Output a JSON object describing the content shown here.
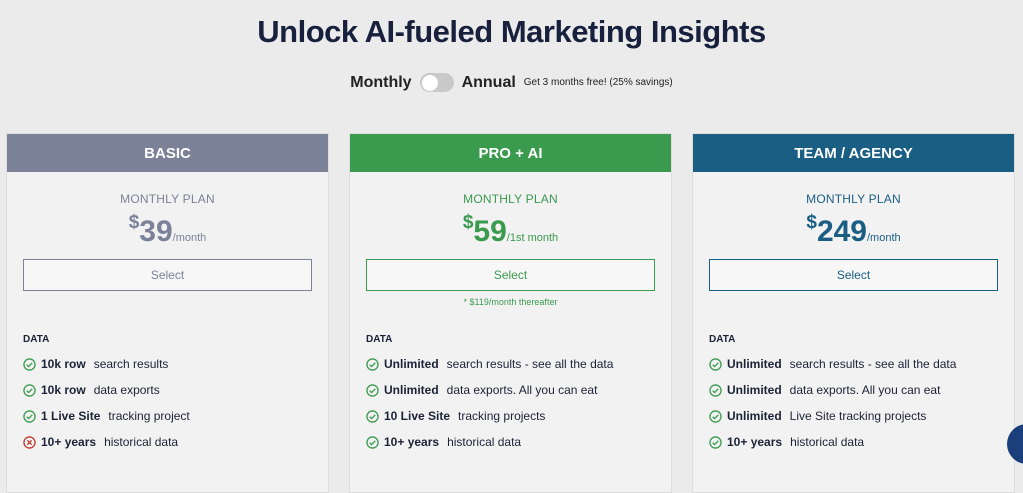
{
  "title": "Unlock AI-fueled Marketing Insights",
  "billing_toggle": {
    "monthly_label": "Monthly",
    "annual_label": "Annual",
    "annual_offer": "Get 3 months free! (25% savings)",
    "selected": "monthly"
  },
  "plans": [
    {
      "name": "BASIC",
      "color": "#7b8298",
      "plan_label": "MONTHLY PLAN",
      "currency": "$",
      "price": "39",
      "period": "/month",
      "button": "Select",
      "section": "DATA",
      "features": [
        {
          "bold": "10k row",
          "text": "search results",
          "included": true
        },
        {
          "bold": "10k row",
          "text": "data exports",
          "included": true
        },
        {
          "bold": "1 Live Site",
          "text": "tracking project",
          "included": true
        },
        {
          "bold": "10+ years",
          "text": "historical data",
          "included": false
        }
      ]
    },
    {
      "name": "PRO + AI",
      "color": "#3a9a4e",
      "plan_label": "MONTHLY PLAN",
      "currency": "$",
      "price": "59",
      "period": "/1st month",
      "button": "Select",
      "note": "* $119/month thereafter",
      "section": "DATA",
      "features": [
        {
          "bold": "Unlimited",
          "text": "search results - see all the data",
          "included": true
        },
        {
          "bold": "Unlimited",
          "text": "data exports. All you can eat",
          "included": true
        },
        {
          "bold": "10 Live Site",
          "text": "tracking projects",
          "included": true
        },
        {
          "bold": "10+ years",
          "text": "historical data",
          "included": true
        }
      ]
    },
    {
      "name": "TEAM / AGENCY",
      "color": "#1b5e84",
      "plan_label": "MONTHLY PLAN",
      "currency": "$",
      "price": "249",
      "period": "/month",
      "button": "Select",
      "section": "DATA",
      "features": [
        {
          "bold": "Unlimited",
          "text": "search results - see all the data",
          "included": true
        },
        {
          "bold": "Unlimited",
          "text": "data exports. All you can eat",
          "included": true
        },
        {
          "bold": "Unlimited",
          "text": "Live Site tracking projects",
          "included": true
        },
        {
          "bold": "10+ years",
          "text": "historical data",
          "included": true
        }
      ]
    }
  ]
}
